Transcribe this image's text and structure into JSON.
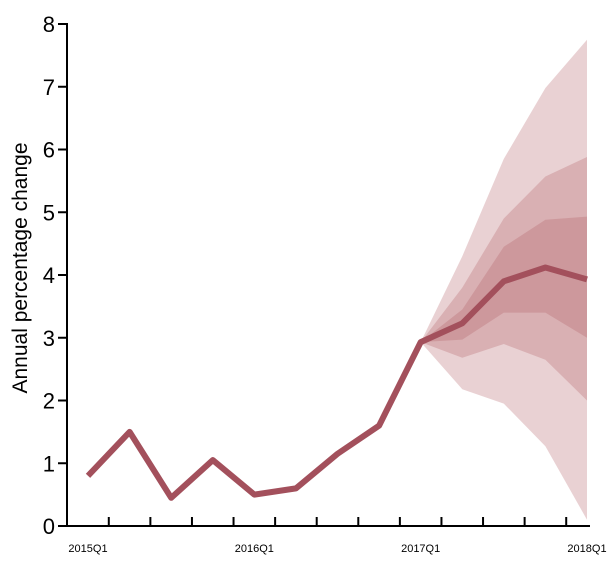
{
  "chart_data": {
    "type": "line",
    "title": "",
    "xlabel": "",
    "ylabel": "Annual percentage change",
    "ylim": [
      0,
      8
    ],
    "yticks": [
      0,
      1,
      2,
      3,
      4,
      5,
      6,
      7,
      8
    ],
    "x": [
      "2015Q1",
      "2015Q2",
      "2015Q3",
      "2015Q4",
      "2016Q1",
      "2016Q2",
      "2016Q3",
      "2016Q4",
      "2017Q1",
      "2017Q2",
      "2017Q3",
      "2017Q4",
      "2018Q1"
    ],
    "xtick_labels": [
      {
        "index": 0,
        "label": "2015Q1"
      },
      {
        "index": 4,
        "label": "2016Q1"
      },
      {
        "index": 8,
        "label": "2017Q1"
      },
      {
        "index": 12,
        "label": "2018Q1"
      }
    ],
    "grid": false,
    "series": [
      {
        "values": [
          0.8,
          1.5,
          0.45,
          1.05,
          0.5,
          0.6,
          1.15,
          1.6,
          2.93,
          3.23,
          3.9,
          4.12,
          3.93
        ],
        "color": "#a3505c"
      }
    ],
    "fan_bands": {
      "start_index": 8,
      "color": "#b05a62",
      "bands": [
        {
          "lower": [
            2.93,
            2.18,
            1.95,
            1.27,
            0.1
          ],
          "upper": [
            2.93,
            4.3,
            5.85,
            6.98,
            7.75
          ]
        },
        {
          "lower": [
            2.93,
            2.68,
            2.9,
            2.65,
            2.0
          ],
          "upper": [
            2.93,
            3.8,
            4.9,
            5.57,
            5.88
          ]
        },
        {
          "lower": [
            2.93,
            2.97,
            3.4,
            3.4,
            3.0
          ],
          "upper": [
            2.93,
            3.45,
            4.45,
            4.88,
            4.93
          ]
        }
      ]
    }
  }
}
